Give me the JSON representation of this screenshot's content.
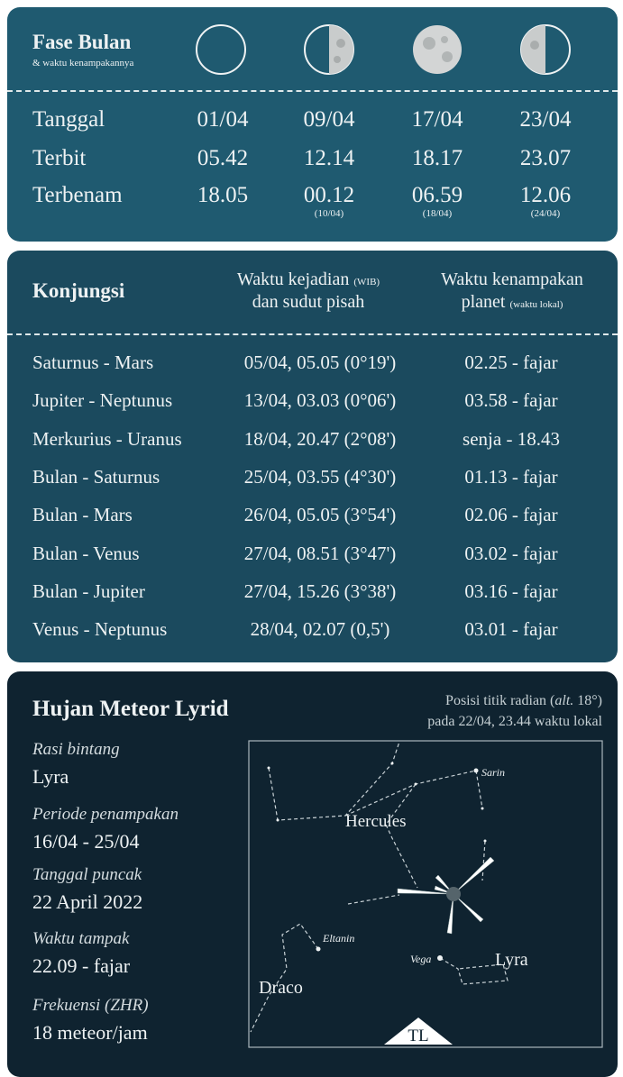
{
  "moon": {
    "title": "Fase Bulan",
    "subtitle": "& waktu kenampakannya",
    "rows": [
      {
        "label": "Tanggal",
        "cells": [
          {
            "text": "01/04"
          },
          {
            "text": "09/04"
          },
          {
            "text": "17/04"
          },
          {
            "text": "23/04"
          }
        ]
      },
      {
        "label": "Terbit",
        "cells": [
          {
            "text": "05.42"
          },
          {
            "text": "12.14"
          },
          {
            "text": "18.17"
          },
          {
            "text": "23.07"
          }
        ]
      },
      {
        "label": "Terbenam",
        "cells": [
          {
            "text": "18.05"
          },
          {
            "text": "00.12",
            "note": "(10/04)"
          },
          {
            "text": "06.59",
            "note": "(18/04)"
          },
          {
            "text": "12.06",
            "note": "(24/04)"
          }
        ]
      }
    ]
  },
  "conjunction": {
    "title": "Konjungsi",
    "header": {
      "time": {
        "line1": "Waktu kejadian",
        "small": "(WIB)",
        "line2": "dan sudut pisah"
      },
      "visibility": {
        "line1": "Waktu kenampakan",
        "line2": "planet",
        "small": "(waktu lokal)"
      }
    },
    "rows": [
      [
        "Saturnus - Mars",
        "05/04, 05.05 (0°19')",
        "02.25 - fajar"
      ],
      [
        "Jupiter - Neptunus",
        "13/04, 03.03 (0°06')",
        "03.58 - fajar"
      ],
      [
        "Merkurius - Uranus",
        "18/04, 20.47 (2°08')",
        "senja - 18.43"
      ],
      [
        "Bulan - Saturnus",
        "25/04, 03.55 (4°30')",
        "01.13 - fajar"
      ],
      [
        "Bulan - Mars",
        "26/04, 05.05 (3°54')",
        "02.06 - fajar"
      ],
      [
        "Bulan - Venus",
        "27/04, 08.51 (3°47')",
        "03.02 - fajar"
      ],
      [
        "Bulan - Jupiter",
        "27/04, 15.26 (3°38')",
        "03.16 - fajar"
      ],
      [
        "Venus - Neptunus",
        "28/04, 02.07 (0,5')",
        "03.01 - fajar"
      ]
    ]
  },
  "meteor": {
    "title": "Hujan Meteor Lyrid",
    "caption": {
      "parts": [
        "Posisi titik radian (",
        "alt.",
        " 18°)"
      ],
      "line2": "pada 22/04, 23.44 waktu lokal"
    },
    "items": [
      {
        "label": "Rasi bintang",
        "value": "Lyra"
      },
      {
        "label": "Periode penampakan",
        "value": "16/04 - 25/04"
      },
      {
        "label": "Tanggal puncak",
        "value": "22 April 2022"
      },
      {
        "label": "Waktu tampak",
        "value": "22.09 - fajar"
      },
      {
        "label": "Frekuensi (ZHR)",
        "value": "18 meteor/jam"
      }
    ],
    "map": {
      "hercules": "Hercules",
      "sarin": "Sarin",
      "eltanin": "Eltanin",
      "vega": "Vega",
      "lyra": "Lyra",
      "draco": "Draco",
      "direction": "TL"
    }
  }
}
